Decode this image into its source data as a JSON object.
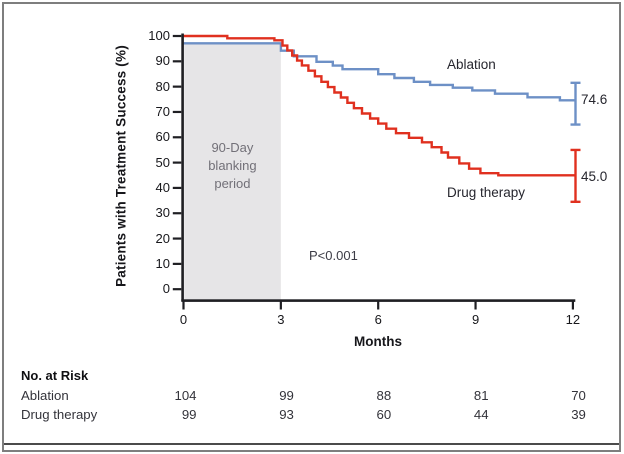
{
  "figure": {
    "y_axis_label": "Patients with Treatment Success (%)",
    "blanking_label_lines": [
      "90-Day",
      "blanking",
      "period"
    ]
  },
  "chart_data": {
    "type": "line",
    "subtype": "kaplan-meier-step",
    "title": "",
    "xlabel": "Months",
    "ylabel": "Patients with Treatment Success (%)",
    "xlim": [
      0,
      12
    ],
    "ylim": [
      0,
      100
    ],
    "x_ticks": [
      0,
      3,
      6,
      9,
      12
    ],
    "y_ticks": [
      0,
      10,
      20,
      30,
      40,
      50,
      60,
      70,
      80,
      90,
      100
    ],
    "grid": false,
    "legend_position": "inline-labels",
    "annotations": {
      "p_value": "P<0.001",
      "blanking_region_label": "90-Day blanking period"
    },
    "blanking_region": {
      "x_start": 0,
      "x_end": 3,
      "top_percent": 97.3,
      "fill": "#e6e5e7"
    },
    "series": [
      {
        "name": "Ablation",
        "color": "#6d90c6",
        "end_label": "74.6",
        "final_value": 74.6,
        "ci_at_12_months": [
          65.0,
          81.5
        ],
        "points": [
          [
            0,
            97.1
          ],
          [
            3.0,
            94.2
          ],
          [
            3.4,
            92.0
          ],
          [
            4.1,
            89.8
          ],
          [
            4.6,
            88.3
          ],
          [
            4.9,
            86.9
          ],
          [
            6.0,
            84.9
          ],
          [
            6.5,
            83.4
          ],
          [
            7.1,
            81.9
          ],
          [
            7.6,
            80.7
          ],
          [
            8.3,
            79.6
          ],
          [
            8.9,
            78.5
          ],
          [
            9.6,
            77.2
          ],
          [
            10.6,
            75.8
          ],
          [
            11.6,
            74.6
          ]
        ]
      },
      {
        "name": "Drug therapy",
        "color": "#e0301f",
        "end_label": "45.0",
        "final_value": 45.0,
        "ci_at_12_months": [
          34.5,
          55.0
        ],
        "points": [
          [
            0,
            100
          ],
          [
            1.35,
            99.1
          ],
          [
            2.8,
            98.3
          ],
          [
            3.05,
            96.2
          ],
          [
            3.2,
            94.3
          ],
          [
            3.35,
            92.3
          ],
          [
            3.5,
            90.3
          ],
          [
            3.65,
            88.4
          ],
          [
            3.85,
            86.3
          ],
          [
            4.05,
            84.1
          ],
          [
            4.25,
            81.9
          ],
          [
            4.45,
            79.8
          ],
          [
            4.65,
            77.7
          ],
          [
            4.85,
            75.7
          ],
          [
            5.05,
            73.6
          ],
          [
            5.25,
            71.5
          ],
          [
            5.5,
            69.4
          ],
          [
            5.75,
            67.4
          ],
          [
            6.0,
            65.4
          ],
          [
            6.25,
            63.4
          ],
          [
            6.55,
            61.6
          ],
          [
            6.95,
            59.8
          ],
          [
            7.35,
            58.0
          ],
          [
            7.65,
            56.1
          ],
          [
            7.95,
            54.0
          ],
          [
            8.15,
            52.0
          ],
          [
            8.5,
            49.7
          ],
          [
            8.8,
            47.6
          ],
          [
            9.15,
            45.8
          ],
          [
            9.7,
            45.0
          ]
        ]
      }
    ]
  },
  "risk_table": {
    "title": "No. at Risk",
    "time_points": [
      0,
      3,
      6,
      9,
      12
    ],
    "rows": [
      {
        "label": "Ablation",
        "values": [
          "104",
          "99",
          "88",
          "81",
          "70"
        ]
      },
      {
        "label": "Drug therapy",
        "values": [
          "99",
          "93",
          "60",
          "44",
          "39"
        ]
      }
    ]
  },
  "colors": {
    "ablation": "#6d90c6",
    "drug_therapy": "#e0301f",
    "blanking_fill": "#e6e5e7",
    "blanking_text": "#727078",
    "axis": "#1f1f23",
    "frame_border": "#7e7e7e",
    "divider": "#4b4b4b"
  }
}
